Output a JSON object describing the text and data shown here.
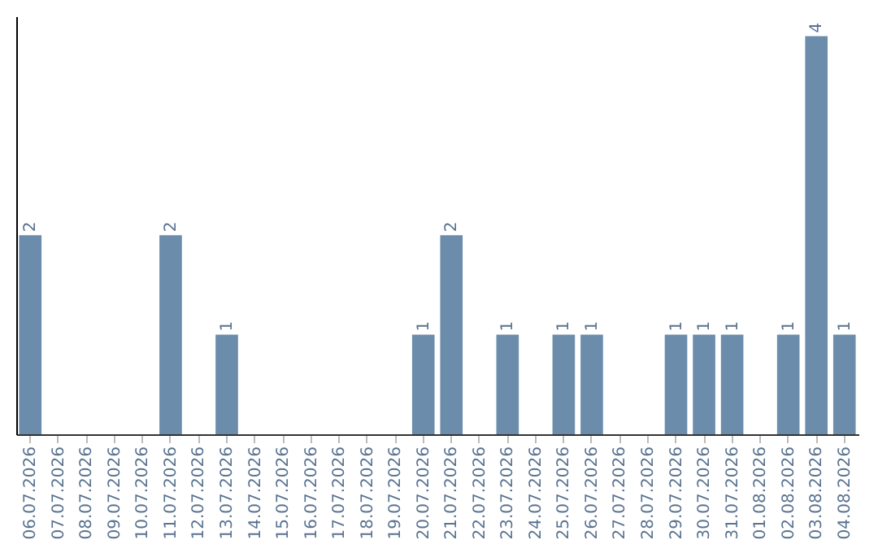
{
  "chart_data": {
    "type": "bar",
    "categories": [
      "06.07.2026",
      "07.07.2026",
      "08.07.2026",
      "09.07.2026",
      "10.07.2026",
      "11.07.2026",
      "12.07.2026",
      "13.07.2026",
      "14.07.2026",
      "15.07.2026",
      "16.07.2026",
      "17.07.2026",
      "18.07.2026",
      "19.07.2026",
      "20.07.2026",
      "21.07.2026",
      "22.07.2026",
      "23.07.2026",
      "24.07.2026",
      "25.07.2026",
      "26.07.2026",
      "27.07.2026",
      "28.07.2026",
      "29.07.2026",
      "30.07.2026",
      "31.07.2026",
      "01.08.2026",
      "02.08.2026",
      "03.08.2026",
      "04.08.2026"
    ],
    "values": [
      2,
      0,
      0,
      0,
      0,
      2,
      0,
      1,
      0,
      0,
      0,
      0,
      0,
      0,
      1,
      2,
      0,
      1,
      0,
      1,
      1,
      0,
      0,
      1,
      1,
      1,
      0,
      1,
      4,
      1
    ],
    "value_labels": [
      "2",
      null,
      null,
      null,
      null,
      "2",
      null,
      "1",
      null,
      null,
      null,
      null,
      null,
      null,
      "1",
      "2",
      null,
      "1",
      null,
      "1",
      "1",
      null,
      null,
      "1",
      "1",
      "1",
      null,
      "1",
      "4",
      "1"
    ],
    "color": "#6b8cab",
    "ylim": [
      0,
      4.2
    ],
    "tick_labels": "x",
    "grid": false
  }
}
